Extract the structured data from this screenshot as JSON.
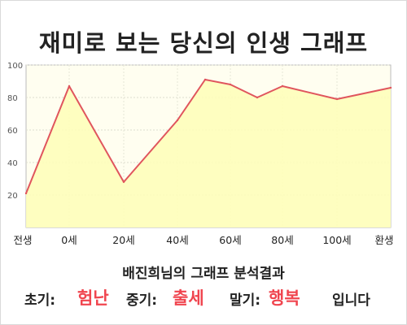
{
  "title": "재미로 보는 당신의 인생 그래프",
  "chart_data": {
    "type": "area",
    "title": "재미로 보는 당신의 인생 그래프",
    "xlabel": "",
    "ylabel": "",
    "ylim": [
      0,
      100
    ],
    "yticks": [
      20,
      40,
      60,
      80,
      100
    ],
    "xtick_labels": [
      "전생",
      "0세",
      "20세",
      "40세",
      "60세",
      "80세",
      "100세",
      "환생"
    ],
    "points": [
      {
        "x": "전생",
        "y": 21
      },
      {
        "x": "0세",
        "y": 87
      },
      {
        "x": "20세",
        "y": 28
      },
      {
        "x": "40세",
        "y": 66
      },
      {
        "x": "50세",
        "y": 91
      },
      {
        "x": "60세",
        "y": 88
      },
      {
        "x": "70세",
        "y": 80
      },
      {
        "x": "80세",
        "y": 87
      },
      {
        "x": "100세",
        "y": 79
      },
      {
        "x": "환생",
        "y": 86
      }
    ],
    "grid": true,
    "legend": "none"
  },
  "colors": {
    "line": "#e0555d",
    "fill": "#fefeba",
    "plot_bg": "#fffef0",
    "highlight": "#f0454f"
  },
  "summary": {
    "subtitle": "배진희님의 그래프 분석결과",
    "early_label": "초기:",
    "early_value": "험난",
    "middle_label": "중기:",
    "middle_value": "출세",
    "late_label": "말기:",
    "late_value": "행복",
    "ending": "입니다"
  }
}
